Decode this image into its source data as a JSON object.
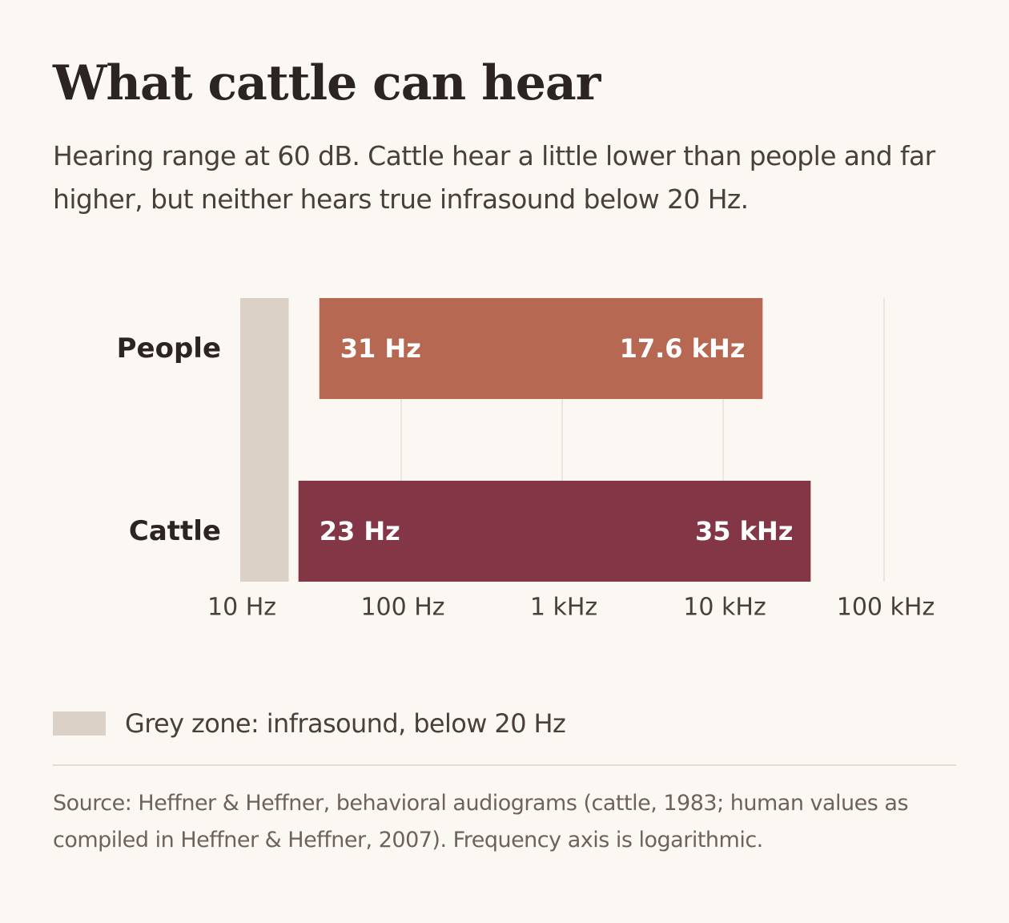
{
  "title": "What cattle can hear",
  "subtitle": "Hearing range at 60 dB. Cattle hear a little lower than people and far higher, but neither hears true infrasound below 20 Hz.",
  "legend": {
    "label": "Grey zone: infrasound, below 20 Hz",
    "color": "#dcd1c6"
  },
  "source": "Source: Heffner & Heffner, behavioral audiograms (cattle, 1983; human values as compiled in Heffner & Heffner, 2007). Frequency axis is logarithmic.",
  "chart_data": {
    "type": "bar",
    "orientation": "horizontal-range",
    "x_scale": "log",
    "xlim_hz": [
      10,
      100000
    ],
    "x_ticks_hz": [
      10,
      100,
      1000,
      10000,
      100000
    ],
    "x_tick_labels": [
      "10 Hz",
      "100 Hz",
      "1 kHz",
      "10 kHz",
      "100 kHz"
    ],
    "grid": true,
    "infrasound_zone_hz": [
      10,
      20
    ],
    "categories": [
      "People",
      "Cattle"
    ],
    "ranges": [
      {
        "category": "People",
        "low_hz": 31,
        "high_hz": 17600,
        "low_label": "31 Hz",
        "high_label": "17.6 kHz",
        "color": "#b76852"
      },
      {
        "category": "Cattle",
        "low_hz": 23,
        "high_hz": 35000,
        "low_label": "23 Hz",
        "high_label": "35 kHz",
        "color": "#833746"
      }
    ]
  }
}
